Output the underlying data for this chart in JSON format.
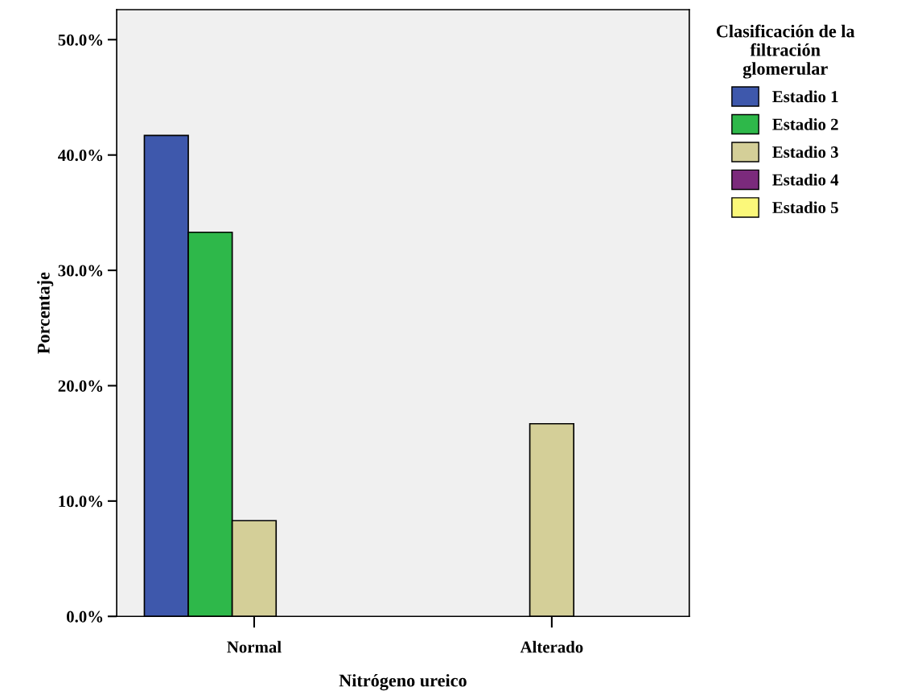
{
  "chart_data": {
    "type": "bar",
    "xlabel": "Nitrógeno ureico",
    "ylabel": "Porcentaje",
    "legend_title": "Clasificación de la\nfiltración\nglomerular",
    "categories": [
      "Normal",
      "Alterado"
    ],
    "series": [
      {
        "name": "Estadio 1",
        "color": "#3e58ac",
        "values": [
          41.7,
          null
        ]
      },
      {
        "name": "Estadio 2",
        "color": "#2eb84a",
        "values": [
          33.3,
          null
        ]
      },
      {
        "name": "Estadio 3",
        "color": "#d4cf98",
        "values": [
          8.3,
          16.7
        ]
      },
      {
        "name": "Estadio 4",
        "color": "#7b2a7c",
        "values": [
          null,
          null
        ]
      },
      {
        "name": "Estadio 5",
        "color": "#fbf87a",
        "values": [
          null,
          null
        ]
      }
    ],
    "ylim": [
      0,
      52.6
    ],
    "yticks": [
      {
        "value": 0,
        "label": "0.0%"
      },
      {
        "value": 10,
        "label": "10.0%"
      },
      {
        "value": 20,
        "label": "20.0%"
      },
      {
        "value": 30,
        "label": "30.0%"
      },
      {
        "value": 40,
        "label": "40.0%"
      },
      {
        "value": 50,
        "label": "50.0%"
      }
    ],
    "grid": false,
    "legend": "top right"
  }
}
